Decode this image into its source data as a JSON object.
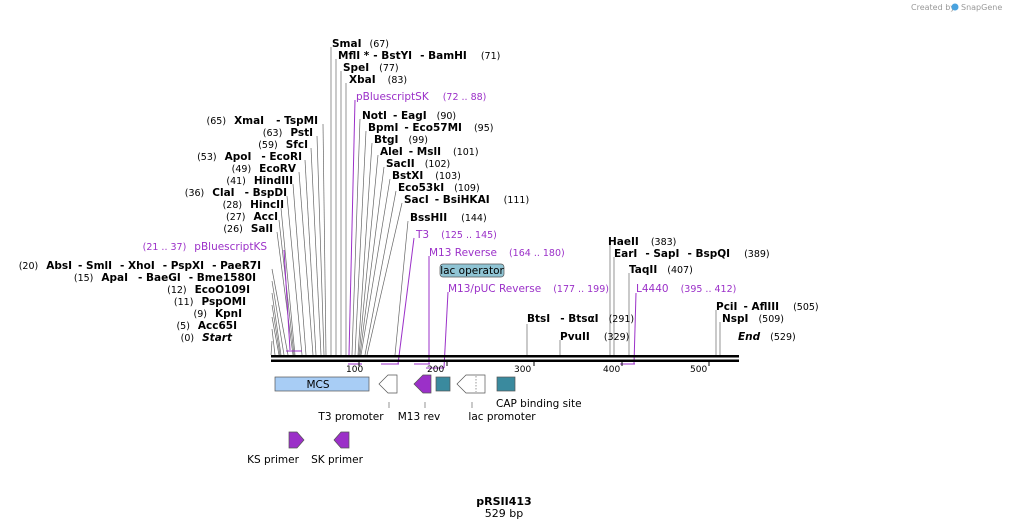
{
  "credit": {
    "prefix": "Created by",
    "brand": "SnapGene"
  },
  "plasmid": {
    "name": "pRSII413",
    "length": "529 bp"
  },
  "ruler": {
    "ticks": [
      "100",
      "200",
      "300",
      "400",
      "500"
    ]
  },
  "sites": [
    {
      "name": "SmaI",
      "pos": "(67)"
    },
    {
      "name": "MflI *",
      "sep1": "- BstYI",
      "sep2": "- BamHI",
      "pos": "(71)"
    },
    {
      "name": "SpeI",
      "pos": "(77)"
    },
    {
      "name": "XbaI",
      "pos": "(83)"
    },
    {
      "name": "NotI",
      "sep1": "- EagI",
      "pos": "(90)"
    },
    {
      "name": "BpmI",
      "sep1": "- Eco57MI",
      "pos": "(95)"
    },
    {
      "name": "BtgI",
      "pos": "(99)"
    },
    {
      "name": "AleI",
      "sep1": "- MslI",
      "pos": "(101)"
    },
    {
      "name": "SacII",
      "pos": "(102)"
    },
    {
      "name": "BstXI",
      "pos": "(103)"
    },
    {
      "name": "Eco53kI",
      "pos": "(109)"
    },
    {
      "name": "SacI",
      "sep1": "- BsiHKAI",
      "pos": "(111)"
    },
    {
      "name": "BssHII",
      "pos": "(144)"
    },
    {
      "pos": "(65)",
      "name": "XmaI",
      "sep1": "- TspMI"
    },
    {
      "pos": "(63)",
      "name": "PstI"
    },
    {
      "pos": "(59)",
      "name": "SfcI"
    },
    {
      "pos": "(53)",
      "name": "ApoI",
      "sep1": "- EcoRI"
    },
    {
      "pos": "(49)",
      "name": "EcoRV"
    },
    {
      "pos": "(41)",
      "name": "HindIII"
    },
    {
      "pos": "(36)",
      "name": "ClaI",
      "sep1": "- BspDI"
    },
    {
      "pos": "(28)",
      "name": "HincII"
    },
    {
      "pos": "(27)",
      "name": "AccI"
    },
    {
      "pos": "(26)",
      "name": "SalI"
    },
    {
      "pos": "(20)",
      "name": "AbsI",
      "sep1": "- SmlI",
      "sep2": "- XhoI",
      "sep3": "- PspXI",
      "sep4": "- PaeR7I"
    },
    {
      "pos": "(15)",
      "name": "ApaI",
      "sep1": "- BaeGI",
      "sep2": "- Bme1580I"
    },
    {
      "pos": "(12)",
      "name": "EcoO109I"
    },
    {
      "pos": "(11)",
      "name": "PspOMI"
    },
    {
      "pos": "(9)",
      "name": "KpnI"
    },
    {
      "pos": "(5)",
      "name": "Acc65I"
    },
    {
      "pos": "(0)",
      "name": "Start"
    },
    {
      "name": "HaeII",
      "pos": "(383)"
    },
    {
      "name": "EarI",
      "sep1": "- SapI",
      "sep2": "- BspQI",
      "pos": "(389)"
    },
    {
      "name": "TaqII",
      "pos": "(407)"
    },
    {
      "name": "PciI",
      "sep1": "- AflIII",
      "pos": "(505)"
    },
    {
      "name": "NspI",
      "pos": "(509)"
    },
    {
      "name": "End",
      "pos": "(529)"
    },
    {
      "name": "BtsI",
      "sep1": "- BtsαI",
      "pos": "(291)"
    },
    {
      "name": "PvuII",
      "pos": "(329)"
    }
  ],
  "primer_labels": [
    {
      "name": "pBluescriptSK",
      "range": "(72 .. 88)"
    },
    {
      "name": "pBluescriptKS",
      "range": "(21 .. 37)"
    },
    {
      "name": "T3",
      "range": "(125 .. 145)"
    },
    {
      "name": "M13 Reverse",
      "range": "(164 .. 180)"
    },
    {
      "name": "M13/pUC Reverse",
      "range": "(177 .. 199)"
    },
    {
      "name": "L4440",
      "range": "(395 .. 412)"
    }
  ],
  "features": {
    "mcs": "MCS",
    "lac_operator": "lac operator",
    "t3_promoter": "T3 promoter",
    "m13_rev": "M13 rev",
    "lac_promoter": "lac promoter",
    "cap_site": "CAP binding site",
    "ks_primer": "KS primer",
    "sk_primer": "SK primer"
  },
  "colors": {
    "primer": "#9b30c8",
    "feature": "#3a8a9e",
    "mcs": "#a8cdf5",
    "operator": "#8fc4d4"
  }
}
